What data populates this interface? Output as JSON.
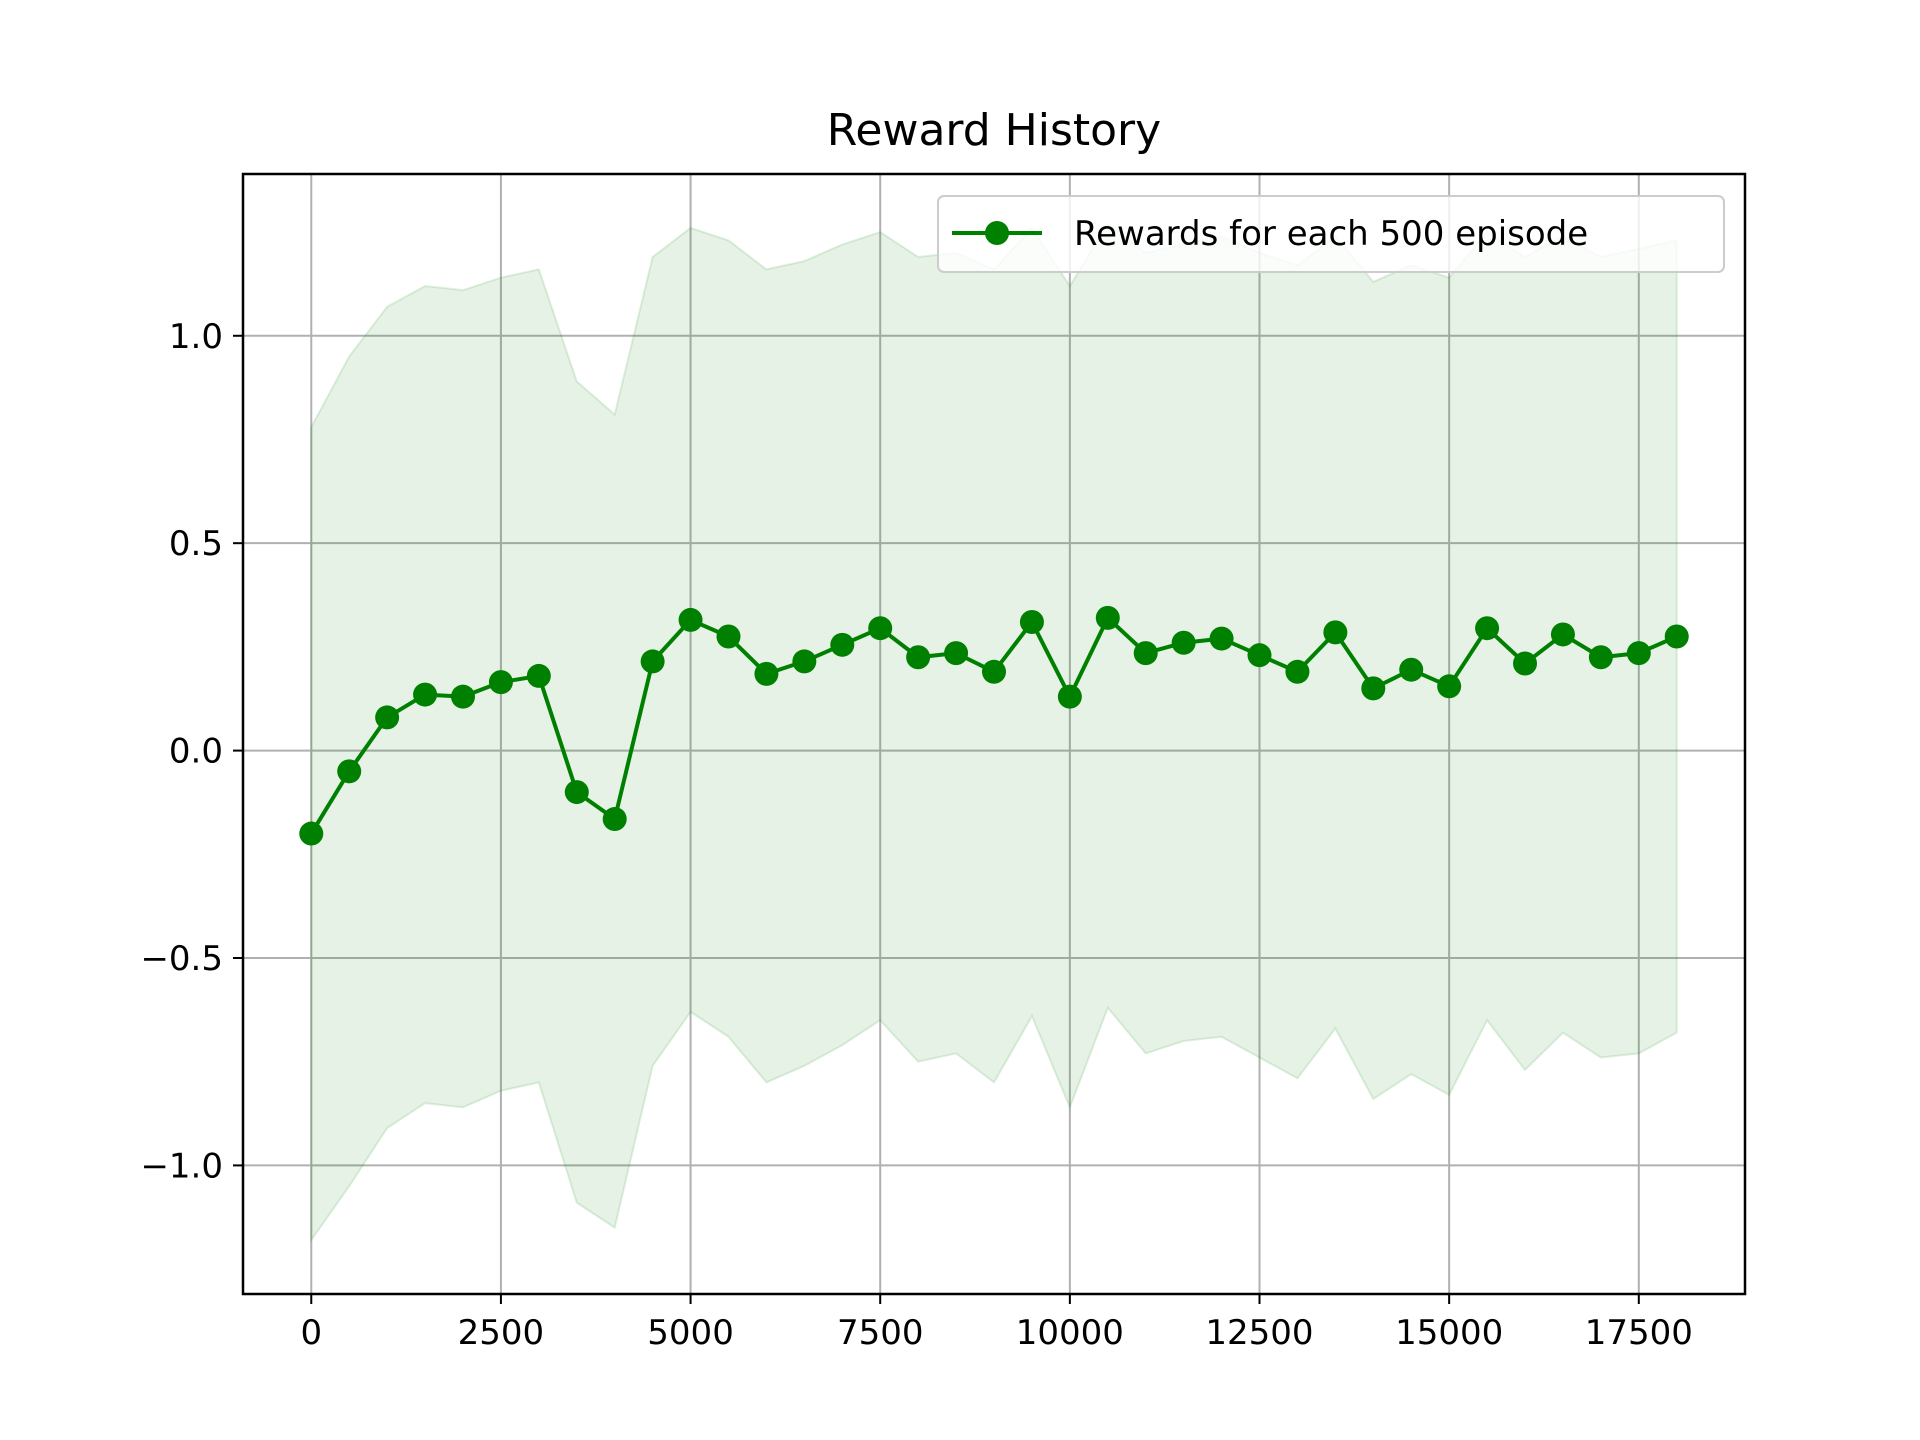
{
  "chart_data": {
    "type": "line",
    "title": "Reward History",
    "xlabel": "",
    "ylabel": "",
    "xlim": [
      -900,
      18900
    ],
    "ylim": [
      -1.31,
      1.39
    ],
    "x_ticks": [
      0,
      2500,
      5000,
      7500,
      10000,
      12500,
      15000,
      17500
    ],
    "x_tick_labels": [
      "0",
      "2500",
      "5000",
      "7500",
      "10000",
      "12500",
      "15000",
      "17500"
    ],
    "y_ticks": [
      -1.0,
      -0.5,
      0.0,
      0.5,
      1.0
    ],
    "y_tick_labels": [
      "−1.0",
      "−0.5",
      "0.0",
      "0.5",
      "1.0"
    ],
    "grid": true,
    "legend_position": "top-right",
    "line_color": "#008000",
    "band_color": "#008000",
    "series": [
      {
        "name": "Rewards for each 500 episode",
        "x": [
          0,
          500,
          1000,
          1500,
          2000,
          2500,
          3000,
          3500,
          4000,
          4500,
          5000,
          5500,
          6000,
          6500,
          7000,
          7500,
          8000,
          8500,
          9000,
          9500,
          10000,
          10500,
          11000,
          11500,
          12000,
          12500,
          13000,
          13500,
          14000,
          14500,
          15000,
          15500,
          16000,
          16500,
          17000,
          17500,
          18000
        ],
        "values": [
          -0.2,
          -0.05,
          0.08,
          0.135,
          0.13,
          0.165,
          0.18,
          -0.1,
          -0.165,
          0.215,
          0.315,
          0.275,
          0.185,
          0.215,
          0.255,
          0.295,
          0.225,
          0.235,
          0.19,
          0.31,
          0.13,
          0.32,
          0.235,
          0.26,
          0.27,
          0.23,
          0.19,
          0.285,
          0.15,
          0.195,
          0.155,
          0.295,
          0.21,
          0.28,
          0.225,
          0.235,
          0.275
        ],
        "upper": [
          0.78,
          0.95,
          1.07,
          1.12,
          1.11,
          1.14,
          1.16,
          0.89,
          0.81,
          1.19,
          1.26,
          1.23,
          1.16,
          1.18,
          1.22,
          1.25,
          1.19,
          1.2,
          1.16,
          1.26,
          1.12,
          1.27,
          1.2,
          1.22,
          1.24,
          1.2,
          1.17,
          1.24,
          1.13,
          1.17,
          1.14,
          1.25,
          1.19,
          1.24,
          1.19,
          1.21,
          1.23
        ],
        "lower": [
          -1.18,
          -1.05,
          -0.91,
          -0.85,
          -0.86,
          -0.82,
          -0.8,
          -1.09,
          -1.15,
          -0.76,
          -0.63,
          -0.69,
          -0.8,
          -0.76,
          -0.71,
          -0.65,
          -0.75,
          -0.73,
          -0.8,
          -0.64,
          -0.86,
          -0.62,
          -0.73,
          -0.7,
          -0.69,
          -0.74,
          -0.79,
          -0.67,
          -0.84,
          -0.78,
          -0.83,
          -0.65,
          -0.77,
          -0.68,
          -0.74,
          -0.73,
          -0.68
        ]
      }
    ]
  }
}
